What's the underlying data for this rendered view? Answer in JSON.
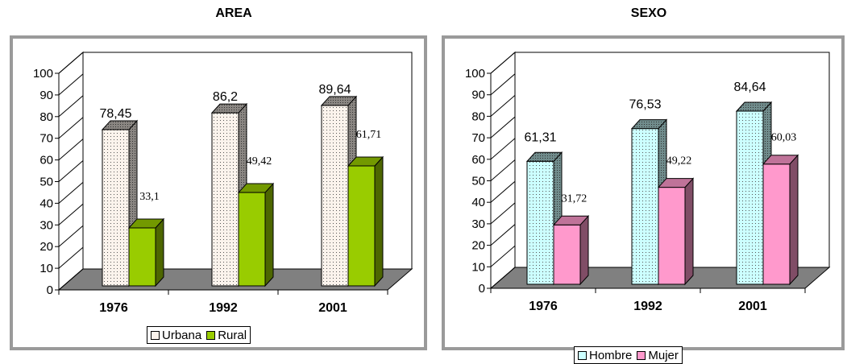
{
  "chart_data": [
    {
      "type": "bar",
      "title": "AREA",
      "categories": [
        "1976",
        "1992",
        "2001"
      ],
      "series": [
        {
          "name": "Urbana",
          "values": [
            78.45,
            86.2,
            89.64
          ],
          "labels": [
            "78,45",
            "86,2",
            "89,64"
          ],
          "color": "#fbf3ec",
          "pattern": "dots"
        },
        {
          "name": "Rural",
          "values": [
            33.1,
            49.42,
            61.71
          ],
          "labels": [
            "33,1",
            "49,42",
            "61,71"
          ],
          "color": "#99cc00",
          "pattern": "solid"
        }
      ],
      "ylim": [
        0,
        100
      ],
      "yticks": [
        "0",
        "10",
        "20",
        "30",
        "40",
        "50",
        "60",
        "70",
        "80",
        "90",
        "100"
      ],
      "xlabel": "",
      "ylabel": "",
      "grid": false,
      "legend": "bottom"
    },
    {
      "type": "bar",
      "title": "SEXO",
      "categories": [
        "1976",
        "1992",
        "2001"
      ],
      "series": [
        {
          "name": "Hombre",
          "values": [
            61.31,
            76.53,
            84.64
          ],
          "labels": [
            "61,31",
            "76,53",
            "84,64"
          ],
          "color": "#ccffff",
          "pattern": "dots"
        },
        {
          "name": "Mujer",
          "values": [
            31.72,
            49.22,
            60.03
          ],
          "labels": [
            "31,72",
            "49,22",
            "60,03"
          ],
          "color": "#ff99cc",
          "pattern": "solid"
        }
      ],
      "ylim": [
        0,
        100
      ],
      "yticks": [
        "0",
        "10",
        "20",
        "30",
        "40",
        "50",
        "60",
        "70",
        "80",
        "90",
        "100"
      ],
      "xlabel": "",
      "ylabel": "",
      "grid": false,
      "legend": "bottom"
    }
  ]
}
